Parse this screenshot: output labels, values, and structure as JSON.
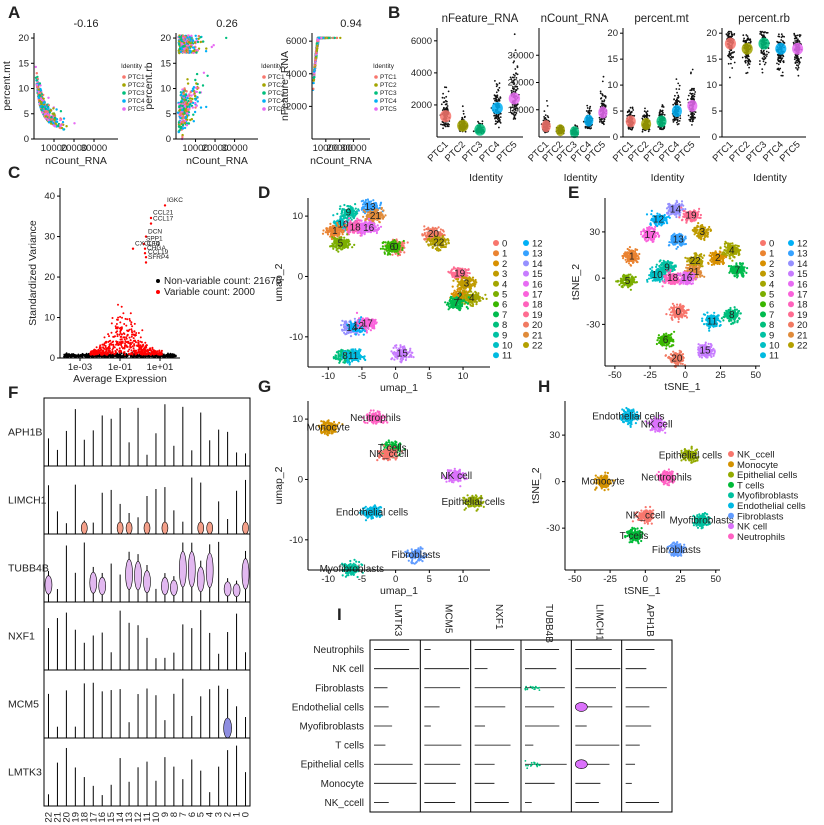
{
  "chart_data": [
    {
      "panel": "A",
      "type": "scatter",
      "subplots": [
        {
          "title": "-0.16",
          "xlabel": "nCount_RNA",
          "ylabel": "percent.mt",
          "xlim": [
            0,
            42000
          ],
          "ylim": [
            0,
            21
          ],
          "xticks": [
            10000,
            20000,
            30000
          ],
          "yticks": [
            0,
            5,
            10,
            15,
            20
          ]
        },
        {
          "title": "0.26",
          "xlabel": "nCount_RNA",
          "ylabel": "percent.rb",
          "xlim": [
            0,
            42000
          ],
          "ylim": [
            0,
            21
          ],
          "xticks": [
            10000,
            20000,
            30000
          ],
          "yticks": [
            0,
            5,
            10,
            15,
            20
          ]
        },
        {
          "title": "0.94",
          "xlabel": "nCount_RNA",
          "ylabel": "nFeature_RNA",
          "xlim": [
            0,
            42000
          ],
          "ylim": [
            0,
            6500
          ],
          "xticks": [
            10000,
            20000,
            30000
          ],
          "yticks": [
            2000,
            4000,
            6000
          ]
        }
      ],
      "legend_title": "Identity",
      "legend": [
        "PTC1",
        "PTC2",
        "PTC3",
        "PTC4",
        "PTC5"
      ],
      "colors": [
        "#F8766D",
        "#A3A500",
        "#00BF7D",
        "#00B0F6",
        "#E76BF3"
      ]
    },
    {
      "panel": "B",
      "type": "violin",
      "subplots": [
        {
          "title": "nFeature_RNA",
          "yticks": [
            2000,
            4000,
            6000
          ],
          "ylim": [
            0,
            6800
          ],
          "medians": [
            1300,
            700,
            450,
            1800,
            2400
          ]
        },
        {
          "title": "nCount_RNA",
          "yticks": [
            10000,
            20000,
            30000
          ],
          "ylim": [
            0,
            40000
          ],
          "medians": [
            4000,
            2500,
            1800,
            6000,
            9000
          ]
        },
        {
          "title": "percent.mt",
          "yticks": [
            0,
            5,
            10,
            15,
            20
          ],
          "ylim": [
            0,
            21
          ],
          "medians": [
            3,
            2.5,
            3,
            5,
            6
          ]
        },
        {
          "title": "percent.rb",
          "yticks": [
            0,
            5,
            10,
            15,
            20
          ],
          "ylim": [
            0,
            21
          ],
          "medians": [
            18,
            17,
            18,
            17,
            17
          ]
        }
      ],
      "categories": [
        "PTC1",
        "PTC2",
        "PTC3",
        "PTC4",
        "PTC5"
      ],
      "xlabel": "Identity"
    },
    {
      "panel": "C",
      "type": "scatter",
      "xlabel": "Average Expression",
      "ylabel": "Standardized Variance",
      "xticks": [
        "1e-03",
        "1e-01",
        "1e+01"
      ],
      "xlim": [
        -4,
        2
      ],
      "ylim": [
        0,
        42
      ],
      "yticks": [
        0,
        10,
        20,
        30,
        40
      ],
      "legend": [
        "Non-variable count: 21676",
        "Variable count: 2000"
      ],
      "colors": [
        "#000000",
        "#FF0000"
      ],
      "gene_labels": [
        {
          "label": "IGKC",
          "x": 1.25,
          "y": 38.5
        },
        {
          "label": "CCL21",
          "x": 0.55,
          "y": 35.4
        },
        {
          "label": "CCL17",
          "x": 0.55,
          "y": 34.0
        },
        {
          "label": "DCN",
          "x": 0.3,
          "y": 30.8
        },
        {
          "label": "SPP1",
          "x": 0.2,
          "y": 29.0
        },
        {
          "label": "CFD",
          "x": 0.25,
          "y": 27.8
        },
        {
          "label": "CXCL14",
          "x": -0.35,
          "y": 27.8
        },
        {
          "label": "CHGA",
          "x": 0.25,
          "y": 26.7
        },
        {
          "label": "CCL19",
          "x": 0.3,
          "y": 25.7
        },
        {
          "label": "SFRP4",
          "x": 0.3,
          "y": 24.4
        }
      ]
    },
    {
      "panel": "D",
      "type": "scatter",
      "xlabel": "umap_1",
      "ylabel": "umap_2",
      "xticks": [
        -10,
        -5,
        0,
        5,
        10
      ],
      "yticks": [
        -10,
        0,
        10
      ],
      "xlim": [
        -13,
        14
      ],
      "ylim": [
        -15,
        13
      ],
      "legend": [
        "0",
        "1",
        "2",
        "3",
        "4",
        "5",
        "6",
        "7",
        "8",
        "9",
        "10",
        "11",
        "12",
        "13",
        "14",
        "15",
        "16",
        "17",
        "18",
        "19",
        "20",
        "21",
        "22"
      ],
      "cluster_labels": [
        {
          "label": "13",
          "x": -3.8,
          "y": 11.5
        },
        {
          "label": "9",
          "x": -7,
          "y": 10.6
        },
        {
          "label": "21",
          "x": -3,
          "y": 10.0
        },
        {
          "label": "10",
          "x": -7.8,
          "y": 8.6
        },
        {
          "label": "18",
          "x": -6,
          "y": 8.1
        },
        {
          "label": "16",
          "x": -4,
          "y": 8.0
        },
        {
          "label": "1",
          "x": -9,
          "y": 7.5
        },
        {
          "label": "5",
          "x": -8.2,
          "y": 5.5
        },
        {
          "label": "20",
          "x": 5.6,
          "y": 7.0
        },
        {
          "label": "22",
          "x": 6.4,
          "y": 5.6
        },
        {
          "label": "0",
          "x": 0,
          "y": 4.9
        },
        {
          "label": "6",
          "x": -0.5,
          "y": 4.9
        },
        {
          "label": "19",
          "x": 9.5,
          "y": 0.5
        },
        {
          "label": "3",
          "x": 10.5,
          "y": -1.2
        },
        {
          "label": "2",
          "x": 9.5,
          "y": -3.3
        },
        {
          "label": "4",
          "x": 11.3,
          "y": -3.6
        },
        {
          "label": "7",
          "x": 9.0,
          "y": -4.4
        },
        {
          "label": "14",
          "x": -6.5,
          "y": -8.5
        },
        {
          "label": "12",
          "x": -5.5,
          "y": -8.2
        },
        {
          "label": "17",
          "x": -4.2,
          "y": -7.8
        },
        {
          "label": "8",
          "x": -7.5,
          "y": -13.2
        },
        {
          "label": "11",
          "x": -6.3,
          "y": -13.2
        },
        {
          "label": "15",
          "x": 1,
          "y": -12.8
        }
      ]
    },
    {
      "panel": "E",
      "type": "scatter",
      "xlabel": "tSNE_1",
      "ylabel": "tSNE_2",
      "xticks": [
        -50,
        -25,
        0,
        25,
        50
      ],
      "yticks": [
        -30,
        0,
        30
      ],
      "xlim": [
        -57,
        53
      ],
      "ylim": [
        -57,
        52
      ],
      "legend": [
        "0",
        "1",
        "2",
        "3",
        "4",
        "5",
        "6",
        "7",
        "8",
        "9",
        "10",
        "11",
        "12",
        "13",
        "14",
        "15",
        "16",
        "17",
        "18",
        "19",
        "20",
        "21",
        "22"
      ],
      "cluster_labels": [
        {
          "label": "14",
          "x": -7,
          "y": 44.5
        },
        {
          "label": "12",
          "x": -19,
          "y": 38
        },
        {
          "label": "19",
          "x": 4,
          "y": 40.5
        },
        {
          "label": "3",
          "x": 12,
          "y": 30
        },
        {
          "label": "17",
          "x": -25,
          "y": 28
        },
        {
          "label": "13",
          "x": -5,
          "y": 25
        },
        {
          "label": "22",
          "x": 7,
          "y": 11
        },
        {
          "label": "2",
          "x": 23,
          "y": 13
        },
        {
          "label": "4",
          "x": 33,
          "y": 18
        },
        {
          "label": "7",
          "x": 37,
          "y": 5
        },
        {
          "label": "1",
          "x": -38,
          "y": 14
        },
        {
          "label": "5",
          "x": -41,
          "y": -2
        },
        {
          "label": "10",
          "x": -20,
          "y": 2
        },
        {
          "label": "9",
          "x": -13,
          "y": 7
        },
        {
          "label": "21",
          "x": 6,
          "y": 4
        },
        {
          "label": "18",
          "x": -9,
          "y": 0
        },
        {
          "label": "16",
          "x": 1,
          "y": 0
        },
        {
          "label": "0",
          "x": -5,
          "y": -22
        },
        {
          "label": "11",
          "x": 19,
          "y": -28
        },
        {
          "label": "8",
          "x": 33,
          "y": -24
        },
        {
          "label": "6",
          "x": -14,
          "y": -40
        },
        {
          "label": "15",
          "x": 14,
          "y": -47
        },
        {
          "label": "20",
          "x": -6,
          "y": -52
        }
      ]
    },
    {
      "panel": "F",
      "type": "violin",
      "genes": [
        "APH1B",
        "LIMCH1",
        "TUBB4B",
        "NXF1",
        "MCM5",
        "LMTK3"
      ],
      "categories": [
        "22",
        "21",
        "20",
        "19",
        "18",
        "17",
        "16",
        "15",
        "14",
        "13",
        "12",
        "11",
        "10",
        "9",
        "8",
        "7",
        "6",
        "5",
        "4",
        "3",
        "2",
        "1",
        "0"
      ]
    },
    {
      "panel": "G",
      "type": "scatter",
      "xlabel": "umap_1",
      "ylabel": "umap_2",
      "xticks": [
        -10,
        -5,
        0,
        5,
        10
      ],
      "yticks": [
        -10,
        0,
        10
      ],
      "xlim": [
        -13,
        14
      ],
      "ylim": [
        -15,
        13
      ],
      "cluster_labels": [
        {
          "label": "Neutrophils",
          "x": -3,
          "y": 10.2
        },
        {
          "label": "Monocyte",
          "x": -10,
          "y": 8.6
        },
        {
          "label": "T cells",
          "x": -0.5,
          "y": 5.2
        },
        {
          "label": "NK_ccell",
          "x": -1,
          "y": 4.2
        },
        {
          "label": "NK cell",
          "x": 9,
          "y": 0.6
        },
        {
          "label": "Epithelial cells",
          "x": 11.5,
          "y": -3.7
        },
        {
          "label": "Endothelial cells",
          "x": -3.5,
          "y": -5.5
        },
        {
          "label": "Fibroblasts",
          "x": 3,
          "y": -12.5
        },
        {
          "label": "Myofibroblasts",
          "x": -6.5,
          "y": -14.8
        }
      ]
    },
    {
      "panel": "H",
      "type": "scatter",
      "xlabel": "tSNE_1",
      "ylabel": "tSNE_2",
      "xticks": [
        -50,
        -25,
        0,
        25,
        50
      ],
      "yticks": [
        -30,
        0,
        30
      ],
      "xlim": [
        -57,
        53
      ],
      "ylim": [
        -57,
        52
      ],
      "legend": [
        "NK_ccell",
        "Monocyte",
        "Epithelial cells",
        "T cells",
        "Myofibroblasts",
        "Endothelial cells",
        "Fibroblasts",
        "NK cell",
        "Neutrophils"
      ],
      "colors": [
        "#F8766D",
        "#D39200",
        "#93AA00",
        "#00BA38",
        "#00C19F",
        "#00B9E3",
        "#619CFF",
        "#DB72FB",
        "#FF61C3"
      ],
      "cluster_labels": [
        {
          "label": "Endothelial cells",
          "x": -12,
          "y": 42
        },
        {
          "label": "NK cell",
          "x": 8,
          "y": 37
        },
        {
          "label": "Epithelial cells",
          "x": 32,
          "y": 17
        },
        {
          "label": "Monocyte",
          "x": -30,
          "y": 0
        },
        {
          "label": "Neutrophils",
          "x": 15,
          "y": 2.5
        },
        {
          "label": "NK_ccell",
          "x": 0,
          "y": -22
        },
        {
          "label": "Myofibroblasts",
          "x": 40,
          "y": -25
        },
        {
          "label": "T cells",
          "x": -8,
          "y": -35
        },
        {
          "label": "Fibroblasts",
          "x": 22,
          "y": -44
        }
      ]
    },
    {
      "panel": "I",
      "type": "violin",
      "genes": [
        "LMTK3",
        "MCM5",
        "NXF1",
        "TUBB4B",
        "LIMCH1",
        "APH1B"
      ],
      "categories": [
        "Neutrophils",
        "NK cell",
        "Fibroblasts",
        "Endothelial cells",
        "Myofibroblasts",
        "T cells",
        "Epithelial cells",
        "Monocyte",
        "NK_ccell"
      ]
    }
  ]
}
